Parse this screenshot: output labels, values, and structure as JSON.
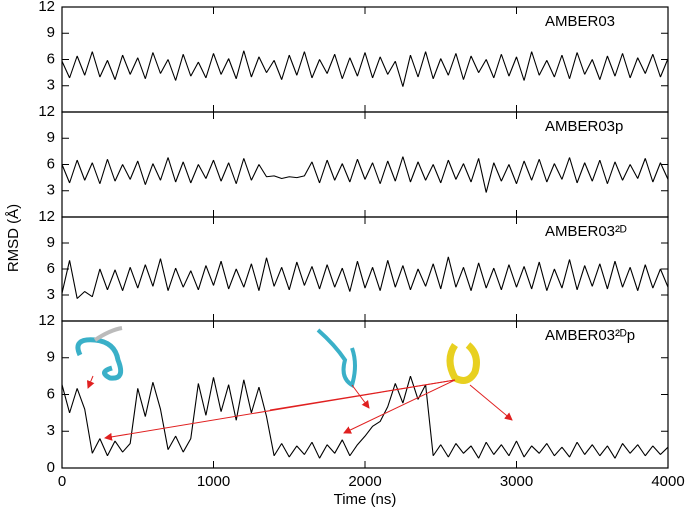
{
  "ylabel": "RMSD (Å)",
  "chart_data": [
    {
      "type": "line",
      "title": "AMBER03",
      "color": "#000000",
      "ylim": [
        0,
        12
      ],
      "yticks": [
        3,
        6,
        9,
        12
      ],
      "xlim": [
        0,
        4000
      ],
      "x": [
        0,
        50,
        100,
        150,
        200,
        250,
        300,
        350,
        400,
        450,
        500,
        550,
        600,
        650,
        700,
        750,
        800,
        850,
        900,
        950,
        1000,
        1050,
        1100,
        1150,
        1200,
        1250,
        1300,
        1350,
        1400,
        1450,
        1500,
        1550,
        1600,
        1650,
        1700,
        1750,
        1800,
        1850,
        1900,
        1950,
        2000,
        2050,
        2100,
        2150,
        2200,
        2250,
        2300,
        2350,
        2400,
        2450,
        2500,
        2550,
        2600,
        2650,
        2700,
        2750,
        2800,
        2850,
        2900,
        2950,
        3000,
        3050,
        3100,
        3150,
        3200,
        3250,
        3300,
        3350,
        3400,
        3450,
        3500,
        3550,
        3600,
        3650,
        3700,
        3750,
        3800,
        3850,
        3900,
        3950,
        4000
      ],
      "values": [
        5.8,
        3.9,
        6.4,
        4.2,
        6.9,
        4.0,
        5.9,
        3.7,
        6.5,
        4.3,
        6.2,
        3.8,
        6.8,
        4.4,
        6.0,
        3.6,
        6.6,
        4.1,
        5.7,
        3.9,
        6.7,
        4.3,
        6.1,
        3.8,
        7.0,
        4.0,
        6.3,
        4.5,
        5.9,
        3.7,
        6.5,
        4.2,
        6.9,
        3.9,
        6.0,
        4.4,
        6.6,
        3.8,
        6.2,
        4.1,
        6.8,
        3.9,
        6.3,
        4.3,
        5.8,
        2.9,
        6.5,
        4.0,
        6.9,
        3.8,
        6.1,
        4.2,
        6.7,
        3.7,
        6.4,
        4.5,
        6.0,
        3.9,
        6.6,
        4.1,
        6.3,
        3.6,
        6.9,
        4.2,
        5.9,
        4.0,
        6.5,
        3.8,
        6.8,
        4.3,
        6.0,
        3.7,
        6.4,
        4.1,
        6.7,
        3.9,
        6.2,
        4.4,
        6.6,
        4.0,
        6.1
      ]
    },
    {
      "type": "line",
      "title": "AMBER03p",
      "color": "#000000",
      "ylim": [
        0,
        12
      ],
      "yticks": [
        3,
        6,
        9,
        12
      ],
      "xlim": [
        0,
        4000
      ],
      "x": [
        0,
        50,
        100,
        150,
        200,
        250,
        300,
        350,
        400,
        450,
        500,
        550,
        600,
        650,
        700,
        750,
        800,
        850,
        900,
        950,
        1000,
        1050,
        1100,
        1150,
        1200,
        1250,
        1300,
        1350,
        1400,
        1450,
        1500,
        1550,
        1600,
        1650,
        1700,
        1750,
        1800,
        1850,
        1900,
        1950,
        2000,
        2050,
        2100,
        2150,
        2200,
        2250,
        2300,
        2350,
        2400,
        2450,
        2500,
        2550,
        2600,
        2650,
        2700,
        2750,
        2800,
        2850,
        2900,
        2950,
        3000,
        3050,
        3100,
        3150,
        3200,
        3250,
        3300,
        3350,
        3400,
        3450,
        3500,
        3550,
        3600,
        3650,
        3700,
        3750,
        3800,
        3850,
        3900,
        3950,
        4000
      ],
      "values": [
        6.0,
        3.9,
        6.5,
        4.2,
        6.2,
        3.8,
        6.6,
        4.1,
        6.0,
        4.3,
        6.4,
        3.7,
        6.1,
        4.2,
        6.8,
        4.0,
        6.3,
        3.9,
        6.0,
        4.4,
        6.5,
        4.1,
        6.2,
        3.8,
        6.7,
        4.2,
        6.0,
        4.6,
        4.7,
        4.4,
        4.6,
        4.5,
        4.7,
        6.3,
        3.9,
        6.5,
        4.2,
        6.1,
        4.0,
        6.6,
        4.3,
        6.2,
        3.8,
        6.4,
        4.1,
        6.9,
        4.0,
        6.3,
        4.2,
        6.0,
        3.9,
        6.5,
        4.3,
        6.1,
        4.0,
        6.7,
        2.8,
        6.2,
        4.1,
        6.0,
        3.8,
        6.4,
        4.2,
        6.6,
        4.0,
        6.1,
        4.3,
        6.8,
        3.9,
        6.2,
        4.1,
        6.5,
        3.8,
        6.3,
        4.2,
        6.0,
        4.4,
        6.7,
        4.0,
        6.2,
        4.3
      ]
    },
    {
      "type": "line",
      "title": "AMBER03²ᴰ",
      "color": "#000000",
      "ylim": [
        0,
        12
      ],
      "yticks": [
        3,
        6,
        9,
        12
      ],
      "xlim": [
        0,
        4000
      ],
      "x": [
        0,
        50,
        100,
        150,
        200,
        250,
        300,
        350,
        400,
        450,
        500,
        550,
        600,
        650,
        700,
        750,
        800,
        850,
        900,
        950,
        1000,
        1050,
        1100,
        1150,
        1200,
        1250,
        1300,
        1350,
        1400,
        1450,
        1500,
        1550,
        1600,
        1650,
        1700,
        1750,
        1800,
        1850,
        1900,
        1950,
        2000,
        2050,
        2100,
        2150,
        2200,
        2250,
        2300,
        2350,
        2400,
        2450,
        2500,
        2550,
        2600,
        2650,
        2700,
        2750,
        2800,
        2850,
        2900,
        2950,
        3000,
        3050,
        3100,
        3150,
        3200,
        3250,
        3300,
        3350,
        3400,
        3450,
        3500,
        3550,
        3600,
        3650,
        3700,
        3750,
        3800,
        3850,
        3900,
        3950,
        4000
      ],
      "values": [
        3.2,
        7.0,
        2.6,
        3.4,
        2.8,
        6.0,
        3.6,
        5.9,
        3.5,
        6.2,
        3.8,
        6.5,
        4.0,
        7.2,
        3.5,
        6.1,
        3.9,
        5.8,
        3.6,
        6.4,
        4.1,
        6.9,
        3.7,
        6.0,
        3.9,
        6.6,
        3.5,
        7.3,
        4.0,
        6.2,
        3.6,
        6.8,
        4.1,
        6.3,
        3.7,
        6.5,
        3.9,
        6.1,
        3.4,
        6.9,
        3.8,
        6.2,
        3.5,
        7.0,
        3.9,
        6.4,
        3.6,
        6.0,
        4.0,
        6.6,
        3.7,
        7.4,
        3.9,
        6.2,
        3.5,
        6.7,
        3.8,
        6.1,
        3.6,
        6.5,
        3.9,
        6.3,
        3.7,
        6.8,
        3.5,
        6.0,
        3.8,
        7.1,
        3.6,
        6.4,
        4.0,
        6.6,
        3.7,
        6.9,
        3.9,
        6.2,
        3.5,
        6.5,
        3.8,
        6.0,
        3.9
      ]
    },
    {
      "type": "line",
      "title": "AMBER03²ᴰp",
      "xlabel": "Time (ns)",
      "color": "#000000",
      "ylim": [
        0,
        12
      ],
      "yticks": [
        0,
        3,
        6,
        9,
        12
      ],
      "xlim": [
        0,
        4000
      ],
      "xticks": [
        0,
        1000,
        2000,
        3000,
        4000
      ],
      "x": [
        0,
        50,
        100,
        150,
        200,
        250,
        300,
        350,
        400,
        450,
        500,
        550,
        600,
        650,
        700,
        750,
        800,
        850,
        900,
        950,
        1000,
        1050,
        1100,
        1150,
        1200,
        1250,
        1300,
        1350,
        1400,
        1450,
        1500,
        1550,
        1600,
        1650,
        1700,
        1750,
        1800,
        1850,
        1900,
        1950,
        2000,
        2050,
        2100,
        2150,
        2200,
        2250,
        2300,
        2350,
        2400,
        2450,
        2500,
        2550,
        2600,
        2650,
        2700,
        2750,
        2800,
        2850,
        2900,
        2950,
        3000,
        3050,
        3100,
        3150,
        3200,
        3250,
        3300,
        3350,
        3400,
        3450,
        3500,
        3550,
        3600,
        3650,
        3700,
        3750,
        3800,
        3850,
        3900,
        3950,
        4000
      ],
      "values": [
        6.8,
        4.5,
        6.5,
        4.8,
        1.2,
        2.4,
        1.0,
        2.2,
        1.3,
        2.0,
        6.5,
        4.2,
        7.0,
        4.8,
        1.5,
        2.6,
        1.3,
        2.4,
        6.9,
        4.3,
        7.4,
        4.6,
        6.8,
        3.9,
        7.2,
        4.5,
        6.6,
        4.2,
        1.0,
        2.0,
        0.9,
        1.8,
        1.1,
        2.1,
        0.8,
        1.9,
        1.2,
        2.3,
        1.0,
        1.9,
        2.6,
        3.4,
        3.8,
        5.0,
        6.9,
        5.3,
        7.5,
        5.6,
        6.8,
        1.0,
        1.9,
        0.9,
        2.0,
        1.2,
        1.8,
        0.8,
        2.1,
        1.1,
        1.9,
        1.0,
        2.2,
        0.9,
        1.8,
        1.2,
        2.0,
        1.0,
        1.7,
        0.9,
        2.1,
        1.1,
        1.9,
        1.0,
        1.8,
        0.8,
        2.0,
        1.2,
        1.9,
        1.0,
        1.8,
        1.1,
        1.7
      ]
    }
  ]
}
